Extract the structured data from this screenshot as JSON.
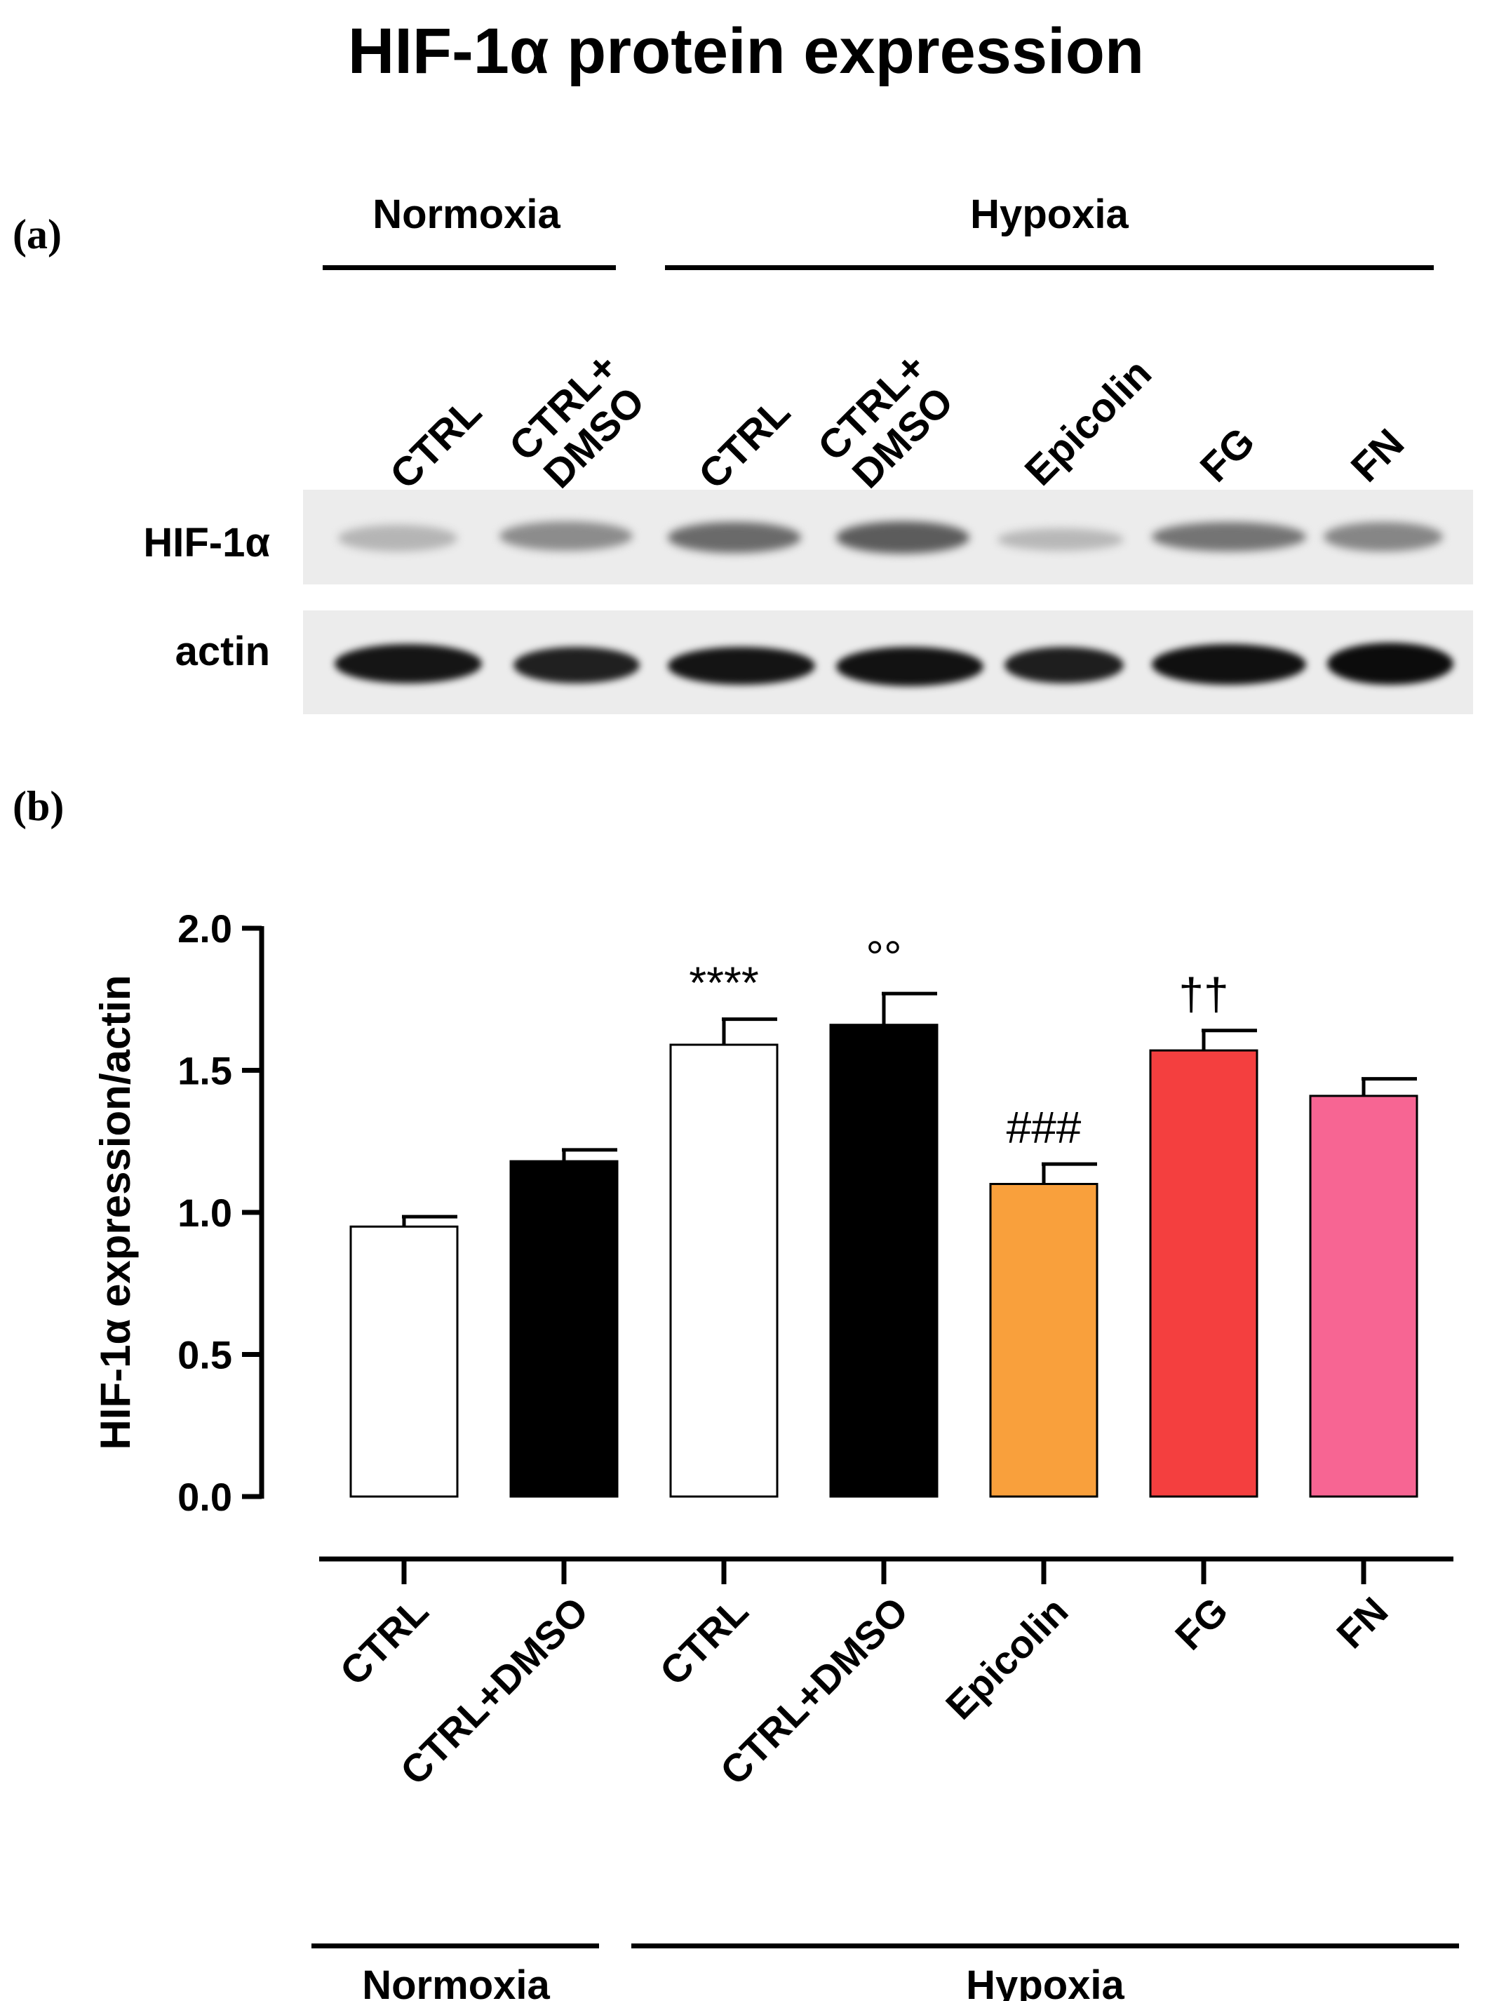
{
  "title": "HIF-1α protein expression",
  "panel_a": {
    "label": "(a)",
    "group_normoxia": "Normoxia",
    "group_hypoxia": "Hypoxia",
    "lanes": [
      {
        "line1": "",
        "line2": "CTRL"
      },
      {
        "line1": "CTRL+",
        "line2": "DMSO"
      },
      {
        "line1": "",
        "line2": "CTRL"
      },
      {
        "line1": "CTRL+",
        "line2": "DMSO"
      },
      {
        "line1": "",
        "line2": "Epicolin"
      },
      {
        "line1": "",
        "line2": "FG"
      },
      {
        "line1": "",
        "line2": "FN"
      }
    ],
    "row_hif": "HIF-1α",
    "row_actin": "actin"
  },
  "panel_b": {
    "label": "(b)",
    "group_normoxia": "Normoxia",
    "group_hypoxia": "Hypoxia"
  },
  "chart_data": {
    "type": "bar",
    "categories": [
      "CTRL",
      "CTRL+DMSO",
      "CTRL",
      "CTRL+DMSO",
      "Epicolin",
      "FG",
      "FN"
    ],
    "values": [
      0.95,
      1.18,
      1.59,
      1.66,
      1.1,
      1.57,
      1.41
    ],
    "errors": [
      0.035,
      0.04,
      0.09,
      0.11,
      0.07,
      0.07,
      0.06
    ],
    "annotations": [
      "",
      "",
      "****",
      "°°",
      "###",
      "††",
      ""
    ],
    "colors": [
      "#ffffff",
      "#000000",
      "#ffffff",
      "#000000",
      "#f9a03c",
      "#f43f3f",
      "#f76593"
    ],
    "ylabel": "HIF-1α expression/actin",
    "xlabel": "",
    "ylim": [
      0,
      2.0
    ],
    "yticks": [
      "0.0",
      "0.5",
      "1.0",
      "1.5",
      "2.0"
    ],
    "title": ""
  }
}
